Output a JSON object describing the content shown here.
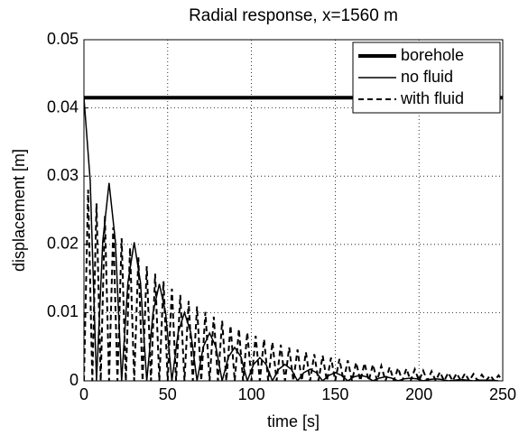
{
  "chart_data": {
    "type": "line",
    "title": "Radial response, x=1560 m",
    "x_label": "time [s]",
    "y_label": "displacement [m]",
    "xlim": [
      0,
      250
    ],
    "xticks": [
      0,
      50,
      100,
      150,
      200,
      250
    ],
    "ylim": [
      0,
      0.05
    ],
    "yticks": [
      0,
      0.01,
      0.02,
      0.03,
      0.04,
      0.05
    ],
    "grid": true,
    "legend": "top-right",
    "series": [
      {
        "name": "borehole",
        "color": "#000000",
        "width": 4,
        "style": "solid",
        "x": [
          0,
          250
        ],
        "values": [
          0.0415,
          0.0415
        ]
      },
      {
        "name": "no fluid",
        "color": "#000000",
        "width": 1.5,
        "style": "solid",
        "x": [
          0,
          3.75,
          7.5,
          11.25,
          15,
          18.75,
          22.5,
          26.25,
          30,
          33.75,
          37.5,
          41.25,
          45,
          48.75,
          52.5,
          56.25,
          60,
          63.75,
          67.5,
          71.25,
          75,
          78.75,
          82.5,
          86.25,
          90,
          93.75,
          97.5,
          101.25,
          105,
          108.75,
          112.5,
          116.25,
          120,
          123.75,
          127.5,
          131.25,
          135,
          138.75,
          142.5,
          146.25,
          150,
          153.75,
          157.5,
          161.25,
          165,
          168.75,
          172.5,
          176.25,
          180,
          183.75,
          187.5,
          191.25,
          195,
          198.75,
          202.5,
          206.25,
          210,
          213.75,
          217.5,
          221.25,
          225,
          228.75,
          232.5,
          236.25,
          240,
          243.75,
          247.5
        ],
        "values": [
          0.0415,
          0.0293,
          0,
          0.0205,
          0.029,
          0.0205,
          0,
          0.0144,
          0.0203,
          0.0144,
          0,
          0.01,
          0.0142,
          0.01,
          0,
          0.0071,
          0.01,
          0.0071,
          0,
          0.005,
          0.007,
          0.005,
          0,
          0.0035,
          0.0049,
          0.0035,
          0,
          0.0024,
          0.0034,
          0.0024,
          0,
          0.0017,
          0.0024,
          0.0017,
          0,
          0.0012,
          0.0017,
          0.0012,
          0,
          0.0008,
          0.0012,
          0.0008,
          0,
          0.0006,
          0.0008,
          0.0006,
          0,
          0.0004,
          0.0006,
          0.0004,
          0,
          0.0003,
          0.0004,
          0.0003,
          0,
          0.0002,
          0.0003,
          0.0002,
          0,
          0.0001,
          0.0002,
          0.0001,
          0,
          0.0001,
          0.0001,
          0.0001,
          0
        ]
      },
      {
        "name": "with fluid",
        "color": "#000000",
        "width": 2,
        "style": "dashed",
        "x": [
          0,
          2.5,
          5,
          7.5,
          10,
          12.5,
          15,
          17.5,
          20,
          22.5,
          25,
          27.5,
          30,
          32.5,
          35,
          37.5,
          40,
          42.5,
          45,
          47.5,
          50,
          52.5,
          55,
          57.5,
          60,
          62.5,
          65,
          67.5,
          70,
          72.5,
          75,
          77.5,
          80,
          82.5,
          85,
          87.5,
          90,
          92.5,
          95,
          97.5,
          100,
          102.5,
          105,
          107.5,
          110,
          112.5,
          115,
          117.5,
          120,
          122.5,
          125,
          127.5,
          130,
          132.5,
          135,
          137.5,
          140,
          142.5,
          145,
          147.5,
          150,
          152.5,
          155,
          157.5,
          160,
          162.5,
          165,
          167.5,
          170,
          172.5,
          175,
          177.5,
          180,
          182.5,
          185,
          187.5,
          190,
          192.5,
          195,
          197.5,
          200,
          202.5,
          205,
          207.5,
          210,
          212.5,
          215,
          217.5,
          220,
          222.5,
          225,
          227.5,
          230,
          232.5,
          235,
          237.5,
          240,
          242.5,
          245,
          247.5,
          250
        ],
        "values": [
          0,
          0.028,
          0,
          0.026,
          0,
          0.0242,
          0,
          0.0225,
          0,
          0.0209,
          0,
          0.0195,
          0,
          0.0181,
          0,
          0.0168,
          0,
          0.0157,
          0,
          0.0146,
          0,
          0.0135,
          0,
          0.0126,
          0,
          0.0117,
          0,
          0.0109,
          0,
          0.0101,
          0,
          0.0094,
          0,
          0.0088,
          0,
          0.0081,
          0,
          0.0076,
          0,
          0.0071,
          0,
          0.0066,
          0,
          0.0061,
          0,
          0.0057,
          0,
          0.0053,
          0,
          0.0049,
          0,
          0.0046,
          0,
          0.0042,
          0,
          0.0039,
          0,
          0.0037,
          0,
          0.0034,
          0,
          0.0032,
          0,
          0.003,
          0,
          0.0027,
          0,
          0.0026,
          0,
          0.0024,
          0,
          0.0022,
          0,
          0.002,
          0,
          0.0019,
          0,
          0.0018,
          0,
          0.0017,
          0,
          0.0015,
          0,
          0.0014,
          0,
          0.0013,
          0,
          0.0012,
          0,
          0.0011,
          0,
          0.0011,
          0,
          0.001,
          0,
          0.0009,
          0,
          0.0008,
          0,
          0.0008,
          0
        ]
      }
    ]
  }
}
